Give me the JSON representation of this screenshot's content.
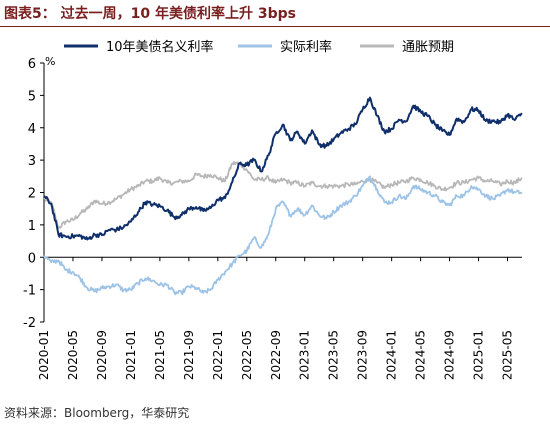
{
  "header": {
    "title": "图表5：  过去一周，10 年美债利率上升 3bps"
  },
  "footer": {
    "source": "资料来源：Bloomberg，华泰研究"
  },
  "chart_data": {
    "type": "line",
    "unit_label": "%",
    "ylim": [
      -2,
      6
    ],
    "yticks": [
      -2,
      -1,
      0,
      1,
      2,
      3,
      4,
      5,
      6
    ],
    "grid": false,
    "legend_position": "top",
    "x_range": [
      "2020-01",
      "2025-07"
    ],
    "xtick_labels": [
      "2020-01",
      "2020-05",
      "2020-09",
      "2021-01",
      "2021-05",
      "2021-09",
      "2022-01",
      "2022-05",
      "2022-09",
      "2023-01",
      "2023-05",
      "2023-09",
      "2024-01",
      "2024-05",
      "2024-09",
      "2025-01",
      "2025-05"
    ],
    "series": [
      {
        "name": "10年美债名义利率",
        "color": "#0f2f6b",
        "points": [
          [
            "2020-01",
            1.88
          ],
          [
            "2020-02",
            1.65
          ],
          [
            "2020-03",
            0.7
          ],
          [
            "2020-04",
            0.64
          ],
          [
            "2020-05",
            0.65
          ],
          [
            "2020-06",
            0.66
          ],
          [
            "2020-07",
            0.55
          ],
          [
            "2020-08",
            0.7
          ],
          [
            "2020-09",
            0.68
          ],
          [
            "2020-10",
            0.85
          ],
          [
            "2020-11",
            0.85
          ],
          [
            "2020-12",
            0.93
          ],
          [
            "2021-01",
            1.1
          ],
          [
            "2021-02",
            1.4
          ],
          [
            "2021-03",
            1.7
          ],
          [
            "2021-04",
            1.63
          ],
          [
            "2021-05",
            1.58
          ],
          [
            "2021-06",
            1.45
          ],
          [
            "2021-07",
            1.24
          ],
          [
            "2021-08",
            1.3
          ],
          [
            "2021-09",
            1.5
          ],
          [
            "2021-10",
            1.55
          ],
          [
            "2021-11",
            1.43
          ],
          [
            "2021-12",
            1.52
          ],
          [
            "2022-01",
            1.78
          ],
          [
            "2022-02",
            1.83
          ],
          [
            "2022-03",
            2.32
          ],
          [
            "2022-04",
            2.89
          ],
          [
            "2022-05",
            2.85
          ],
          [
            "2022-06",
            3.01
          ],
          [
            "2022-07",
            2.65
          ],
          [
            "2022-08",
            3.15
          ],
          [
            "2022-09",
            3.83
          ],
          [
            "2022-10",
            4.1
          ],
          [
            "2022-11",
            3.61
          ],
          [
            "2022-12",
            3.88
          ],
          [
            "2023-01",
            3.51
          ],
          [
            "2023-02",
            3.92
          ],
          [
            "2023-03",
            3.48
          ],
          [
            "2023-04",
            3.44
          ],
          [
            "2023-05",
            3.64
          ],
          [
            "2023-06",
            3.84
          ],
          [
            "2023-07",
            3.96
          ],
          [
            "2023-08",
            4.11
          ],
          [
            "2023-09",
            4.57
          ],
          [
            "2023-10",
            4.93
          ],
          [
            "2023-11",
            4.37
          ],
          [
            "2023-12",
            3.88
          ],
          [
            "2024-01",
            3.97
          ],
          [
            "2024-02",
            4.25
          ],
          [
            "2024-03",
            4.2
          ],
          [
            "2024-04",
            4.68
          ],
          [
            "2024-05",
            4.5
          ],
          [
            "2024-06",
            4.36
          ],
          [
            "2024-07",
            4.09
          ],
          [
            "2024-08",
            3.9
          ],
          [
            "2024-09",
            3.78
          ],
          [
            "2024-10",
            4.28
          ],
          [
            "2024-11",
            4.18
          ],
          [
            "2024-12",
            4.57
          ],
          [
            "2025-01",
            4.54
          ],
          [
            "2025-02",
            4.21
          ],
          [
            "2025-03",
            4.21
          ],
          [
            "2025-04",
            4.16
          ],
          [
            "2025-05",
            4.41
          ],
          [
            "2025-06",
            4.24
          ],
          [
            "2025-07",
            4.45
          ]
        ]
      },
      {
        "name": "实际利率",
        "color": "#9dc3e6",
        "points": [
          [
            "2020-01",
            0.05
          ],
          [
            "2020-02",
            -0.15
          ],
          [
            "2020-03",
            -0.1
          ],
          [
            "2020-04",
            -0.4
          ],
          [
            "2020-05",
            -0.45
          ],
          [
            "2020-06",
            -0.65
          ],
          [
            "2020-07",
            -0.95
          ],
          [
            "2020-08",
            -1.05
          ],
          [
            "2020-09",
            -0.95
          ],
          [
            "2020-10",
            -0.9
          ],
          [
            "2020-11",
            -0.85
          ],
          [
            "2020-12",
            -1.02
          ],
          [
            "2021-01",
            -1.0
          ],
          [
            "2021-02",
            -0.8
          ],
          [
            "2021-03",
            -0.65
          ],
          [
            "2021-04",
            -0.72
          ],
          [
            "2021-05",
            -0.85
          ],
          [
            "2021-06",
            -0.85
          ],
          [
            "2021-07",
            -1.1
          ],
          [
            "2021-08",
            -1.1
          ],
          [
            "2021-09",
            -0.9
          ],
          [
            "2021-10",
            -0.95
          ],
          [
            "2021-11",
            -1.1
          ],
          [
            "2021-12",
            -1.0
          ],
          [
            "2022-01",
            -0.7
          ],
          [
            "2022-02",
            -0.45
          ],
          [
            "2022-03",
            -0.2
          ],
          [
            "2022-04",
            0.05
          ],
          [
            "2022-05",
            0.2
          ],
          [
            "2022-06",
            0.6
          ],
          [
            "2022-07",
            0.3
          ],
          [
            "2022-08",
            0.7
          ],
          [
            "2022-09",
            1.5
          ],
          [
            "2022-10",
            1.7
          ],
          [
            "2022-11",
            1.3
          ],
          [
            "2022-12",
            1.5
          ],
          [
            "2023-01",
            1.3
          ],
          [
            "2023-02",
            1.6
          ],
          [
            "2023-03",
            1.3
          ],
          [
            "2023-04",
            1.2
          ],
          [
            "2023-05",
            1.4
          ],
          [
            "2023-06",
            1.6
          ],
          [
            "2023-07",
            1.7
          ],
          [
            "2023-08",
            1.9
          ],
          [
            "2023-09",
            2.2
          ],
          [
            "2023-10",
            2.5
          ],
          [
            "2023-11",
            2.1
          ],
          [
            "2023-12",
            1.7
          ],
          [
            "2024-01",
            1.7
          ],
          [
            "2024-02",
            1.9
          ],
          [
            "2024-03",
            1.8
          ],
          [
            "2024-04",
            2.2
          ],
          [
            "2024-05",
            2.1
          ],
          [
            "2024-06",
            2.0
          ],
          [
            "2024-07",
            1.9
          ],
          [
            "2024-08",
            1.7
          ],
          [
            "2024-09",
            1.6
          ],
          [
            "2024-10",
            1.9
          ],
          [
            "2024-11",
            1.9
          ],
          [
            "2024-12",
            2.2
          ],
          [
            "2025-01",
            2.1
          ],
          [
            "2025-02",
            1.9
          ],
          [
            "2025-03",
            1.8
          ],
          [
            "2025-04",
            1.9
          ],
          [
            "2025-05",
            2.1
          ],
          [
            "2025-06",
            2.0
          ],
          [
            "2025-07",
            2.0
          ]
        ]
      },
      {
        "name": "通胀预期",
        "color": "#b8b8b8",
        "points": [
          [
            "2020-01",
            1.8
          ],
          [
            "2020-02",
            1.7
          ],
          [
            "2020-03",
            0.9
          ],
          [
            "2020-04",
            1.1
          ],
          [
            "2020-05",
            1.15
          ],
          [
            "2020-06",
            1.35
          ],
          [
            "2020-07",
            1.5
          ],
          [
            "2020-08",
            1.75
          ],
          [
            "2020-09",
            1.65
          ],
          [
            "2020-10",
            1.7
          ],
          [
            "2020-11",
            1.8
          ],
          [
            "2020-12",
            1.95
          ],
          [
            "2021-01",
            2.1
          ],
          [
            "2021-02",
            2.2
          ],
          [
            "2021-03",
            2.35
          ],
          [
            "2021-04",
            2.35
          ],
          [
            "2021-05",
            2.45
          ],
          [
            "2021-06",
            2.3
          ],
          [
            "2021-07",
            2.3
          ],
          [
            "2021-08",
            2.35
          ],
          [
            "2021-09",
            2.35
          ],
          [
            "2021-10",
            2.55
          ],
          [
            "2021-11",
            2.5
          ],
          [
            "2021-12",
            2.55
          ],
          [
            "2022-01",
            2.45
          ],
          [
            "2022-02",
            2.35
          ],
          [
            "2022-03",
            2.9
          ],
          [
            "2022-04",
            2.9
          ],
          [
            "2022-05",
            2.7
          ],
          [
            "2022-06",
            2.4
          ],
          [
            "2022-07",
            2.4
          ],
          [
            "2022-08",
            2.45
          ],
          [
            "2022-09",
            2.3
          ],
          [
            "2022-10",
            2.4
          ],
          [
            "2022-11",
            2.3
          ],
          [
            "2022-12",
            2.3
          ],
          [
            "2023-01",
            2.2
          ],
          [
            "2023-02",
            2.3
          ],
          [
            "2023-03",
            2.2
          ],
          [
            "2023-04",
            2.2
          ],
          [
            "2023-05",
            2.2
          ],
          [
            "2023-06",
            2.2
          ],
          [
            "2023-07",
            2.25
          ],
          [
            "2023-08",
            2.25
          ],
          [
            "2023-09",
            2.35
          ],
          [
            "2023-10",
            2.4
          ],
          [
            "2023-11",
            2.3
          ],
          [
            "2023-12",
            2.15
          ],
          [
            "2024-01",
            2.25
          ],
          [
            "2024-02",
            2.3
          ],
          [
            "2024-03",
            2.35
          ],
          [
            "2024-04",
            2.45
          ],
          [
            "2024-05",
            2.4
          ],
          [
            "2024-06",
            2.3
          ],
          [
            "2024-07",
            2.2
          ],
          [
            "2024-08",
            2.1
          ],
          [
            "2024-09",
            2.15
          ],
          [
            "2024-10",
            2.3
          ],
          [
            "2024-11",
            2.3
          ],
          [
            "2024-12",
            2.4
          ],
          [
            "2025-01",
            2.45
          ],
          [
            "2025-02",
            2.35
          ],
          [
            "2025-03",
            2.35
          ],
          [
            "2025-04",
            2.25
          ],
          [
            "2025-05",
            2.35
          ],
          [
            "2025-06",
            2.3
          ],
          [
            "2025-07",
            2.45
          ]
        ]
      }
    ]
  }
}
